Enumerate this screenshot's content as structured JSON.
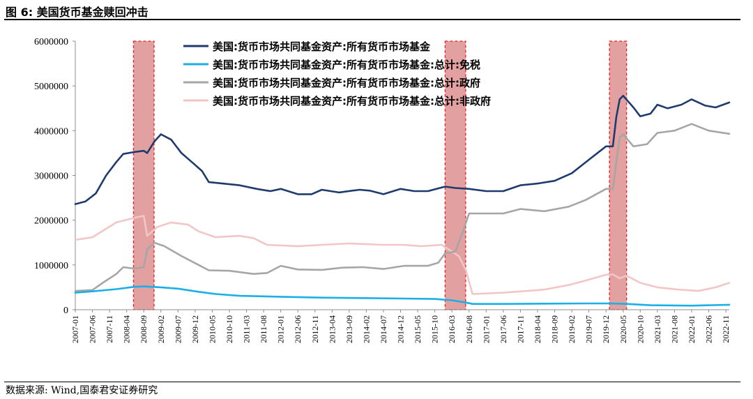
{
  "figure_title": "图 6:  美国货币基金赎回冲击",
  "source": "数据来源:  Wind,国泰君安证券研究",
  "chart_data": {
    "type": "line",
    "title": "",
    "xlabel": "",
    "ylabel": "",
    "ylim": [
      0,
      6000000
    ],
    "yticks": [
      "0",
      "1000000",
      "2000000",
      "3000000",
      "4000000",
      "5000000",
      "6000000"
    ],
    "x_tick_labels": [
      "2007-01",
      "2007-06",
      "2007-11",
      "2008-04",
      "2008-09",
      "2009-02",
      "2009-07",
      "2009-12",
      "2010-05",
      "2010-10",
      "2011-03",
      "2011-08",
      "2012-01",
      "2012-06",
      "2012-11",
      "2013-04",
      "2013-09",
      "2014-02",
      "2014-07",
      "2014-12",
      "2015-05",
      "2015-10",
      "2016-03",
      "2016-08",
      "2017-01",
      "2017-06",
      "2017-11",
      "2018-04",
      "2018-09",
      "2019-02",
      "2019-07",
      "2019-12",
      "2020-05",
      "2020-10",
      "2021-03",
      "2021-08",
      "2022-01",
      "2022-06",
      "2022-11"
    ],
    "x_start": "2007-01",
    "x_end": "2022-12",
    "grid": false,
    "legend_position": "top",
    "shaded_periods": [
      {
        "start": "2008-06",
        "end": "2008-12"
      },
      {
        "start": "2016-01",
        "end": "2016-07"
      },
      {
        "start": "2020-01",
        "end": "2020-06"
      }
    ],
    "shade_color": "#E2A0A0",
    "shade_border": "#E82020",
    "series": [
      {
        "name": "美国:货币市场共同基金资产:所有货币市场基金",
        "color": "#1F3B6E",
        "points": [
          [
            "2007-01",
            2360000
          ],
          [
            "2007-04",
            2420000
          ],
          [
            "2007-07",
            2600000
          ],
          [
            "2007-10",
            3000000
          ],
          [
            "2008-01",
            3300000
          ],
          [
            "2008-03",
            3480000
          ],
          [
            "2008-06",
            3520000
          ],
          [
            "2008-09",
            3550000
          ],
          [
            "2008-10",
            3500000
          ],
          [
            "2008-12",
            3750000
          ],
          [
            "2009-02",
            3920000
          ],
          [
            "2009-05",
            3800000
          ],
          [
            "2009-08",
            3500000
          ],
          [
            "2009-11",
            3300000
          ],
          [
            "2010-02",
            3100000
          ],
          [
            "2010-04",
            2850000
          ],
          [
            "2010-08",
            2820000
          ],
          [
            "2011-01",
            2780000
          ],
          [
            "2011-06",
            2700000
          ],
          [
            "2011-10",
            2650000
          ],
          [
            "2012-01",
            2700000
          ],
          [
            "2012-06",
            2580000
          ],
          [
            "2012-10",
            2580000
          ],
          [
            "2013-01",
            2680000
          ],
          [
            "2013-06",
            2620000
          ],
          [
            "2013-12",
            2680000
          ],
          [
            "2014-03",
            2660000
          ],
          [
            "2014-07",
            2580000
          ],
          [
            "2014-12",
            2700000
          ],
          [
            "2015-04",
            2650000
          ],
          [
            "2015-08",
            2650000
          ],
          [
            "2016-01",
            2750000
          ],
          [
            "2016-04",
            2720000
          ],
          [
            "2016-08",
            2700000
          ],
          [
            "2017-01",
            2650000
          ],
          [
            "2017-06",
            2650000
          ],
          [
            "2017-11",
            2780000
          ],
          [
            "2018-04",
            2820000
          ],
          [
            "2018-09",
            2880000
          ],
          [
            "2019-02",
            3050000
          ],
          [
            "2019-07",
            3350000
          ],
          [
            "2019-12",
            3650000
          ],
          [
            "2020-02",
            3650000
          ],
          [
            "2020-03",
            4300000
          ],
          [
            "2020-04",
            4700000
          ],
          [
            "2020-05",
            4780000
          ],
          [
            "2020-08",
            4520000
          ],
          [
            "2020-10",
            4320000
          ],
          [
            "2021-01",
            4380000
          ],
          [
            "2021-03",
            4580000
          ],
          [
            "2021-06",
            4500000
          ],
          [
            "2021-10",
            4580000
          ],
          [
            "2022-01",
            4700000
          ],
          [
            "2022-05",
            4560000
          ],
          [
            "2022-08",
            4520000
          ],
          [
            "2022-12",
            4630000
          ]
        ]
      },
      {
        "name": "美国:货币市场共同基金资产:所有货币市场基金:总计:免税",
        "color": "#1AAFE6",
        "points": [
          [
            "2007-01",
            380000
          ],
          [
            "2007-06",
            410000
          ],
          [
            "2008-01",
            460000
          ],
          [
            "2008-06",
            510000
          ],
          [
            "2008-09",
            520000
          ],
          [
            "2009-02",
            500000
          ],
          [
            "2009-07",
            470000
          ],
          [
            "2010-01",
            400000
          ],
          [
            "2010-06",
            350000
          ],
          [
            "2011-01",
            310000
          ],
          [
            "2012-01",
            290000
          ],
          [
            "2013-01",
            270000
          ],
          [
            "2014-01",
            260000
          ],
          [
            "2015-01",
            250000
          ],
          [
            "2015-10",
            240000
          ],
          [
            "2016-03",
            210000
          ],
          [
            "2016-07",
            160000
          ],
          [
            "2016-09",
            130000
          ],
          [
            "2017-06",
            130000
          ],
          [
            "2018-06",
            135000
          ],
          [
            "2019-06",
            140000
          ],
          [
            "2020-01",
            140000
          ],
          [
            "2020-06",
            130000
          ],
          [
            "2021-01",
            100000
          ],
          [
            "2022-01",
            90000
          ],
          [
            "2022-12",
            110000
          ]
        ]
      },
      {
        "name": "美国:货币市场共同基金资产:所有货币市场基金:总计:政府",
        "color": "#A6A6A6",
        "points": [
          [
            "2007-01",
            420000
          ],
          [
            "2007-06",
            440000
          ],
          [
            "2007-09",
            600000
          ],
          [
            "2008-01",
            800000
          ],
          [
            "2008-03",
            950000
          ],
          [
            "2008-06",
            920000
          ],
          [
            "2008-09",
            950000
          ],
          [
            "2008-10",
            1350000
          ],
          [
            "2008-12",
            1500000
          ],
          [
            "2009-03",
            1420000
          ],
          [
            "2009-08",
            1200000
          ],
          [
            "2010-01",
            1000000
          ],
          [
            "2010-04",
            880000
          ],
          [
            "2010-10",
            870000
          ],
          [
            "2011-05",
            800000
          ],
          [
            "2011-09",
            820000
          ],
          [
            "2012-01",
            980000
          ],
          [
            "2012-06",
            900000
          ],
          [
            "2013-01",
            890000
          ],
          [
            "2013-07",
            940000
          ],
          [
            "2014-01",
            950000
          ],
          [
            "2014-07",
            910000
          ],
          [
            "2015-01",
            980000
          ],
          [
            "2015-08",
            980000
          ],
          [
            "2015-11",
            1050000
          ],
          [
            "2016-01",
            1260000
          ],
          [
            "2016-04",
            1300000
          ],
          [
            "2016-06",
            1700000
          ],
          [
            "2016-08",
            2150000
          ],
          [
            "2016-12",
            2150000
          ],
          [
            "2017-06",
            2150000
          ],
          [
            "2017-11",
            2250000
          ],
          [
            "2018-06",
            2200000
          ],
          [
            "2019-01",
            2300000
          ],
          [
            "2019-06",
            2450000
          ],
          [
            "2019-12",
            2700000
          ],
          [
            "2020-02",
            2700000
          ],
          [
            "2020-03",
            3300000
          ],
          [
            "2020-04",
            3850000
          ],
          [
            "2020-05",
            3920000
          ],
          [
            "2020-08",
            3650000
          ],
          [
            "2020-12",
            3700000
          ],
          [
            "2021-03",
            3950000
          ],
          [
            "2021-08",
            4000000
          ],
          [
            "2022-01",
            4150000
          ],
          [
            "2022-06",
            4000000
          ],
          [
            "2022-12",
            3930000
          ]
        ]
      },
      {
        "name": "美国:货币市场共同基金资产:所有货币市场基金:总计:非政府",
        "color": "#F2C6C6",
        "points": [
          [
            "2007-01",
            1560000
          ],
          [
            "2007-06",
            1620000
          ],
          [
            "2008-01",
            1950000
          ],
          [
            "2008-06",
            2050000
          ],
          [
            "2008-09",
            2100000
          ],
          [
            "2008-10",
            1650000
          ],
          [
            "2009-01",
            1850000
          ],
          [
            "2009-05",
            1950000
          ],
          [
            "2009-10",
            1900000
          ],
          [
            "2010-01",
            1750000
          ],
          [
            "2010-06",
            1620000
          ],
          [
            "2011-01",
            1650000
          ],
          [
            "2011-05",
            1600000
          ],
          [
            "2011-09",
            1450000
          ],
          [
            "2012-06",
            1420000
          ],
          [
            "2013-01",
            1450000
          ],
          [
            "2013-09",
            1480000
          ],
          [
            "2014-07",
            1450000
          ],
          [
            "2015-01",
            1450000
          ],
          [
            "2015-06",
            1420000
          ],
          [
            "2015-12",
            1450000
          ],
          [
            "2016-02",
            1350000
          ],
          [
            "2016-05",
            1200000
          ],
          [
            "2016-07",
            900000
          ],
          [
            "2016-09",
            350000
          ],
          [
            "2017-06",
            380000
          ],
          [
            "2018-01",
            420000
          ],
          [
            "2018-06",
            450000
          ],
          [
            "2019-01",
            550000
          ],
          [
            "2019-06",
            650000
          ],
          [
            "2019-12",
            780000
          ],
          [
            "2020-02",
            790000
          ],
          [
            "2020-04",
            700000
          ],
          [
            "2020-06",
            760000
          ],
          [
            "2020-10",
            600000
          ],
          [
            "2021-03",
            500000
          ],
          [
            "2021-09",
            450000
          ],
          [
            "2022-03",
            420000
          ],
          [
            "2022-08",
            500000
          ],
          [
            "2022-12",
            600000
          ]
        ]
      }
    ]
  }
}
